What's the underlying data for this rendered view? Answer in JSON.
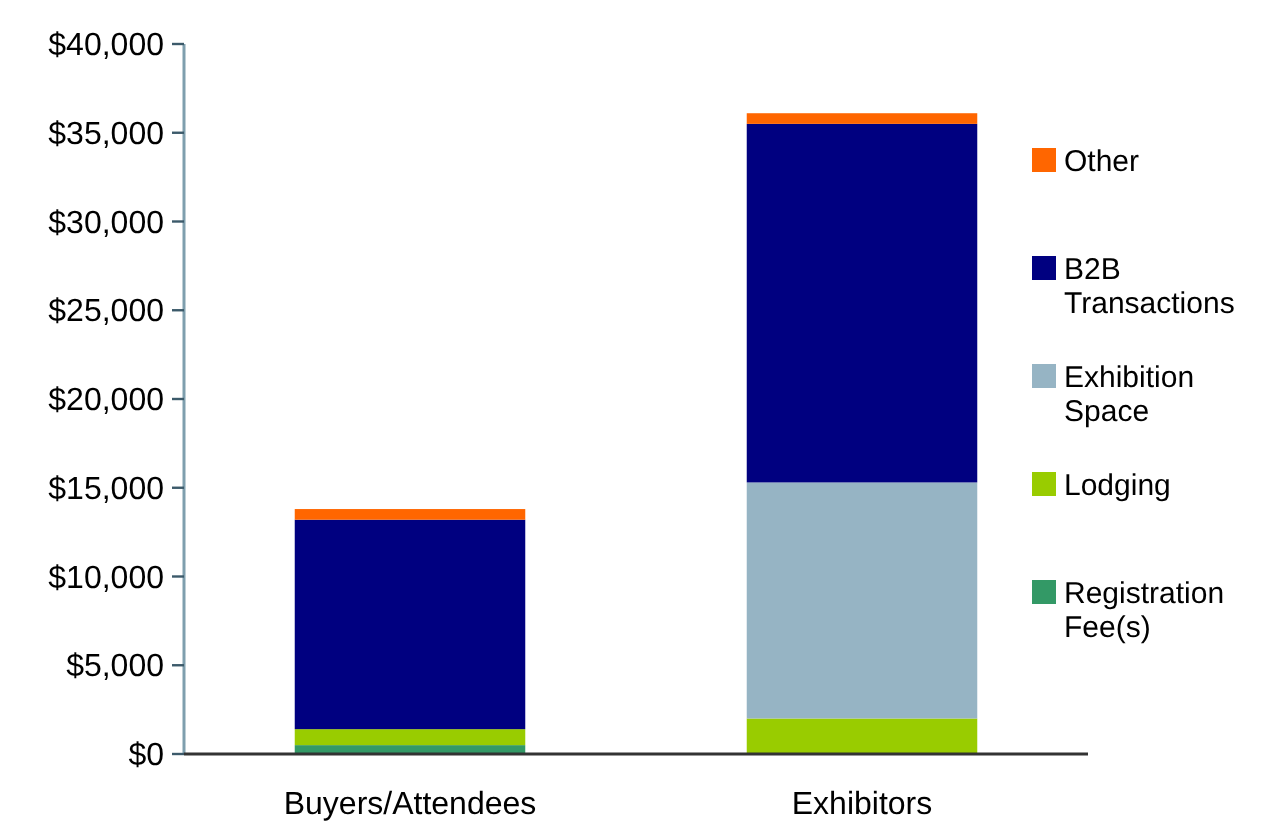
{
  "chart_data": {
    "type": "bar",
    "stacked": true,
    "categories": [
      "Buyers/Attendees",
      "Exhibitors"
    ],
    "series": [
      {
        "name": "Registration Fee(s)",
        "color": "#339966",
        "values": [
          500,
          0
        ]
      },
      {
        "name": "Lodging",
        "color": "#99cc00",
        "values": [
          900,
          2000
        ]
      },
      {
        "name": "Exhibition Space",
        "color": "#96b4c4",
        "values": [
          0,
          13300
        ]
      },
      {
        "name": "B2B Transactions",
        "color": "#000080",
        "values": [
          11800,
          20200
        ]
      },
      {
        "name": "Other",
        "color": "#ff6600",
        "values": [
          600,
          600
        ]
      }
    ],
    "ylim": [
      0,
      40000
    ],
    "yticks": [
      {
        "value": 0,
        "label": "$0"
      },
      {
        "value": 5000,
        "label": "$5,000"
      },
      {
        "value": 10000,
        "label": "$10,000"
      },
      {
        "value": 15000,
        "label": "$15,000"
      },
      {
        "value": 20000,
        "label": "$20,000"
      },
      {
        "value": 25000,
        "label": "$25,000"
      },
      {
        "value": 30000,
        "label": "$30,000"
      },
      {
        "value": 35000,
        "label": "$35,000"
      },
      {
        "value": 40000,
        "label": "$40,000"
      }
    ],
    "grid": false,
    "legend": "right"
  }
}
